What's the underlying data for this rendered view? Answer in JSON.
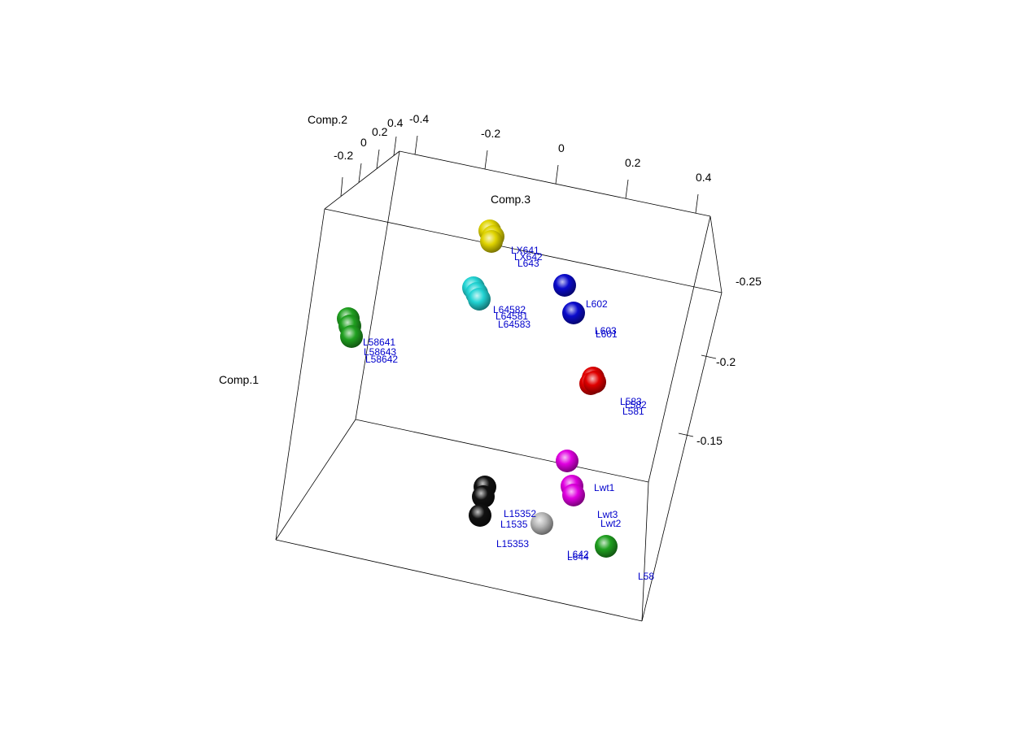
{
  "chart_data": {
    "type": "scatter",
    "projection": "3d",
    "axes": {
      "x": {
        "label": "Comp.1",
        "ticks": []
      },
      "y": {
        "label": "Comp.2",
        "ticks": [
          "-0.2",
          "0",
          "0.2",
          "0.4"
        ]
      },
      "z": {
        "label": "Comp.3",
        "ticks": [
          "-0.4",
          "-0.2",
          "0",
          "0.2",
          "0.4"
        ]
      },
      "right_axis": {
        "ticks": [
          "-0.25",
          "-0.2",
          "-0.15"
        ]
      }
    },
    "grid": false,
    "label_color": "#0000cc",
    "groups": [
      {
        "color": "#e0d400",
        "points": [
          "LX641",
          "LX642",
          "L643"
        ]
      },
      {
        "color": "#22d4d4",
        "points": [
          "L64582",
          "L64581",
          "L64583"
        ]
      },
      {
        "color": "#0a0acc",
        "points": [
          "L602",
          "L603",
          "L601"
        ]
      },
      {
        "color": "#20a020",
        "points": [
          "L58641",
          "L58643",
          "L58642"
        ]
      },
      {
        "color": "#e00000",
        "points": [
          "L583",
          "L582",
          "L581"
        ]
      },
      {
        "color": "#e000e0",
        "points": [
          "Lwt1",
          "Lwt3",
          "Lwt2"
        ]
      },
      {
        "color": "#111111",
        "points": [
          "L15352",
          "L1535",
          "L15353"
        ]
      },
      {
        "color": "#b8b8b8",
        "points": []
      },
      {
        "color": "#20a020",
        "points": [
          "L642",
          "L644",
          "L58"
        ]
      }
    ]
  }
}
